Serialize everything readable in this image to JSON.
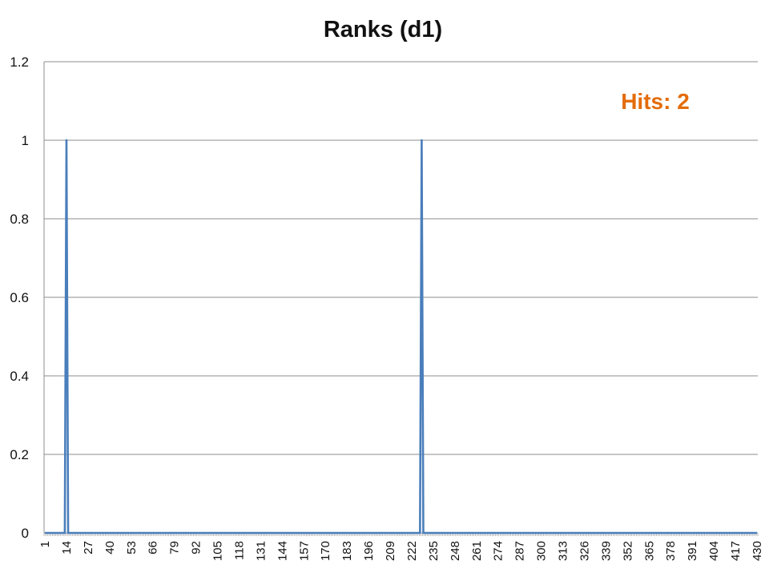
{
  "chart_data": {
    "type": "line",
    "title": "Ranks (d1)",
    "xlabel": "",
    "ylabel": "",
    "x_range": [
      1,
      430
    ],
    "ylim": [
      0,
      1.2
    ],
    "y_ticks": [
      "0",
      "0.2",
      "0.4",
      "0.6",
      "0.8",
      "1",
      "1.2"
    ],
    "x_tick_labels": [
      "1",
      "14",
      "27",
      "40",
      "53",
      "66",
      "79",
      "92",
      "105",
      "118",
      "131",
      "144",
      "157",
      "170",
      "183",
      "196",
      "209",
      "222",
      "235",
      "248",
      "261",
      "274",
      "287",
      "300",
      "313",
      "326",
      "339",
      "352",
      "365",
      "378",
      "391",
      "404",
      "417",
      "430"
    ],
    "grid": true,
    "legend": "none",
    "series": [
      {
        "color": "#4a7ebb",
        "baseline": 0,
        "points": [
          {
            "x": 14,
            "y": 1
          },
          {
            "x": 228,
            "y": 1
          }
        ]
      }
    ],
    "annotation": {
      "text": "Hits: 2",
      "color": "#e46c0a"
    }
  }
}
